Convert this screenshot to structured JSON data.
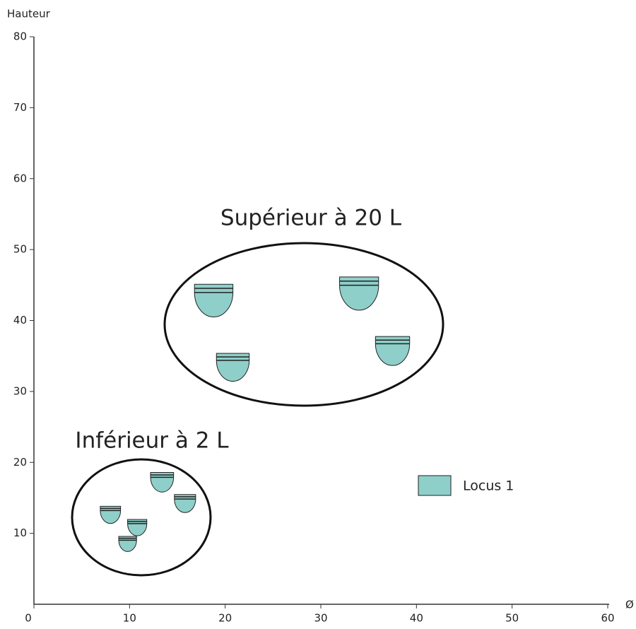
{
  "chart_data": {
    "type": "scatter",
    "x_label": "Ø",
    "y_label": "Hauteur",
    "x": [
      18.8,
      34.0,
      20.8,
      37.5,
      13.4,
      15.8,
      8.0,
      10.8,
      9.8
    ],
    "series": [
      {
        "name": "Locus 1",
        "color": "#8fcfc9",
        "values": [
          42.8,
          43.8,
          33.4,
          35.7,
          17.2,
          14.2,
          12.6,
          10.8,
          8.5
        ]
      }
    ],
    "annotations": [
      "Supérieur à 20 L",
      "Inférieur à 2 L"
    ],
    "xlim": [
      0,
      60
    ],
    "ylim": [
      0,
      80
    ],
    "xticks": [
      0,
      10,
      20,
      30,
      40,
      50,
      60
    ],
    "yticks": [
      10,
      20,
      30,
      40,
      50,
      60,
      70,
      80
    ]
  }
}
